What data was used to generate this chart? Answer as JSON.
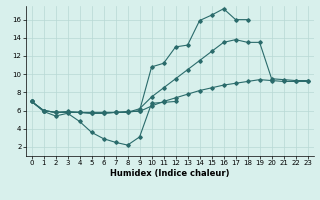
{
  "xlabel": "Humidex (Indice chaleur)",
  "xlim": [
    -0.5,
    23.5
  ],
  "ylim": [
    1,
    17.5
  ],
  "yticks": [
    2,
    4,
    6,
    8,
    10,
    12,
    14,
    16
  ],
  "xticks": [
    0,
    1,
    2,
    3,
    4,
    5,
    6,
    7,
    8,
    9,
    10,
    11,
    12,
    13,
    14,
    15,
    16,
    17,
    18,
    19,
    20,
    21,
    22,
    23
  ],
  "bg_color": "#d8f0ec",
  "line_color": "#2a6b6b",
  "grid_color": "#b8d8d4",
  "lines": [
    {
      "x": [
        0,
        1,
        2,
        3,
        4,
        5,
        6,
        7,
        8,
        9,
        10,
        11,
        12
      ],
      "y": [
        7.0,
        5.9,
        5.4,
        5.7,
        4.8,
        3.6,
        2.9,
        2.5,
        2.2,
        3.1,
        6.8,
        6.9,
        7.0
      ]
    },
    {
      "x": [
        0,
        1,
        2,
        3,
        4,
        5,
        6,
        7,
        8,
        9,
        10,
        11,
        12,
        13,
        14,
        15,
        16,
        17,
        18,
        19,
        20,
        21,
        22,
        23
      ],
      "y": [
        7.0,
        6.0,
        5.8,
        5.9,
        5.8,
        5.7,
        5.7,
        5.8,
        5.9,
        5.9,
        6.5,
        7.0,
        7.4,
        7.8,
        8.2,
        8.5,
        8.8,
        9.0,
        9.2,
        9.4,
        9.3,
        9.2,
        9.2,
        9.2
      ]
    },
    {
      "x": [
        0,
        1,
        2,
        3,
        4,
        5,
        6,
        7,
        8,
        9,
        10,
        11,
        12,
        13,
        14,
        15,
        16,
        17,
        18,
        19,
        20,
        21,
        22,
        23
      ],
      "y": [
        7.0,
        6.0,
        5.8,
        5.8,
        5.8,
        5.8,
        5.8,
        5.8,
        5.8,
        6.2,
        7.5,
        8.5,
        9.5,
        10.5,
        11.5,
        12.5,
        13.5,
        13.8,
        13.5,
        13.5,
        9.5,
        9.4,
        9.3,
        9.3
      ]
    },
    {
      "x": [
        0,
        1,
        2,
        3,
        4,
        5,
        6,
        7,
        8,
        9,
        10,
        11,
        12,
        13,
        14,
        15,
        16,
        17,
        18
      ],
      "y": [
        7.0,
        6.0,
        5.8,
        5.8,
        5.8,
        5.7,
        5.7,
        5.8,
        5.8,
        6.0,
        10.8,
        11.2,
        13.0,
        13.2,
        15.9,
        16.5,
        17.2,
        16.0,
        16.0
      ]
    }
  ]
}
